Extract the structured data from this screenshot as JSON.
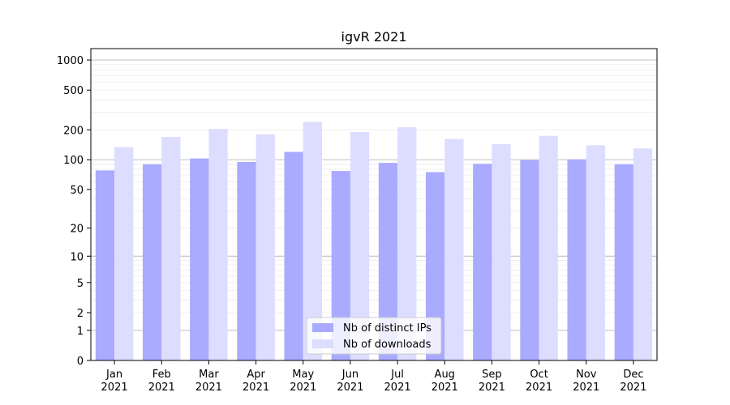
{
  "chart_data": {
    "type": "bar",
    "title": "igvR 2021",
    "xlabel": "",
    "ylabel": "",
    "yscale": "log1p",
    "ylim": [
      0,
      1300
    ],
    "grid": "horizontal",
    "legend_position": "bottom-center",
    "categories": [
      "Jan\n2021",
      "Feb\n2021",
      "Mar\n2021",
      "Apr\n2021",
      "May\n2021",
      "Jun\n2021",
      "Jul\n2021",
      "Aug\n2021",
      "Sep\n2021",
      "Oct\n2021",
      "Nov\n2021",
      "Dec\n2021"
    ],
    "y_ticks": [
      {
        "value": 0,
        "label": "0"
      },
      {
        "value": 1,
        "label": "1"
      },
      {
        "value": 2,
        "label": "2"
      },
      {
        "value": 5,
        "label": "5"
      },
      {
        "value": 10,
        "label": "10"
      },
      {
        "value": 20,
        "label": "20"
      },
      {
        "value": 50,
        "label": "50"
      },
      {
        "value": 100,
        "label": "100"
      },
      {
        "value": 200,
        "label": "200"
      },
      {
        "value": 500,
        "label": "500"
      },
      {
        "value": 1000,
        "label": "1000"
      }
    ],
    "series": [
      {
        "name": "Nb of distinct IPs",
        "color": "#aaaaff",
        "values": [
          78,
          90,
          103,
          95,
          120,
          77,
          93,
          75,
          91,
          99,
          101,
          90
        ]
      },
      {
        "name": "Nb of downloads",
        "color": "#ddddff",
        "values": [
          134,
          170,
          204,
          180,
          240,
          190,
          212,
          162,
          144,
          174,
          140,
          130
        ]
      }
    ]
  }
}
